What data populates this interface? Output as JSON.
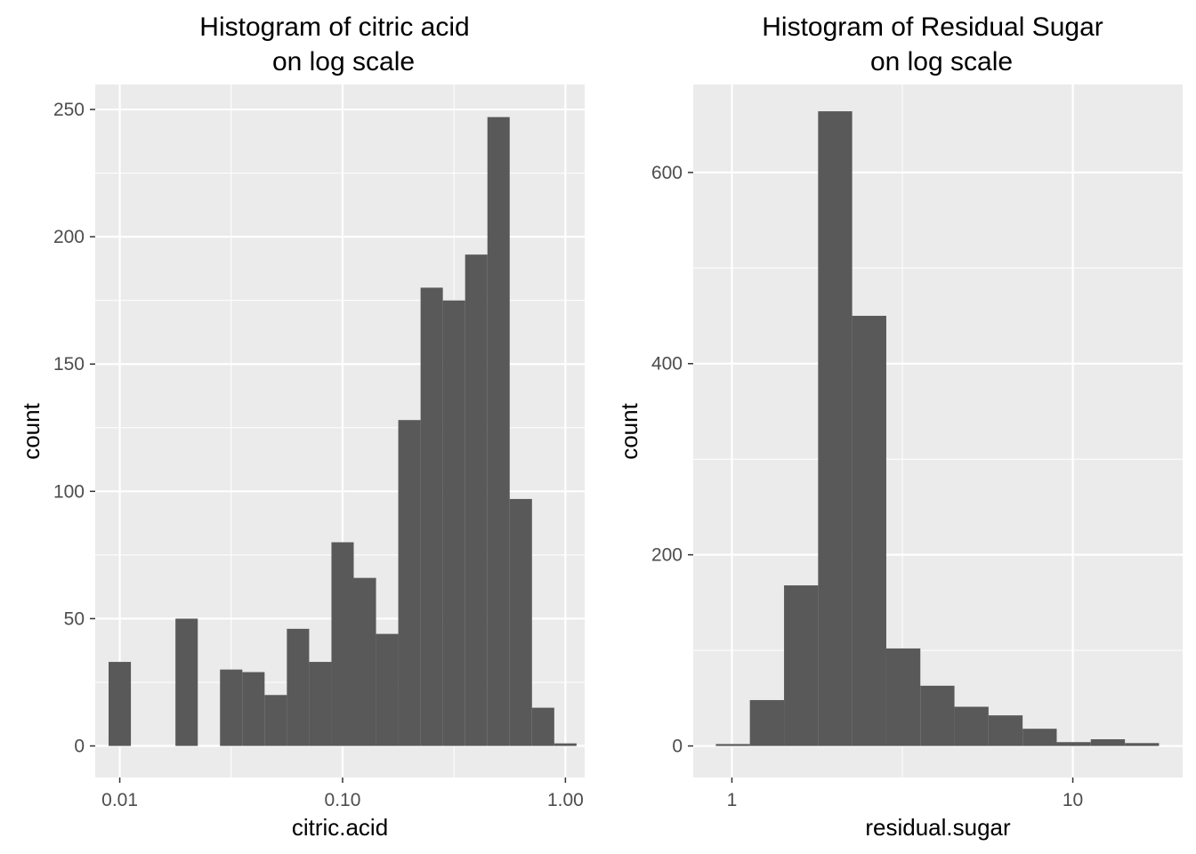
{
  "colors": {
    "panel_bg": "#ebebeb",
    "grid_major": "#ffffff",
    "bar_fill": "#595959",
    "tick_text": "#4d4d4d",
    "title_text": "#000000"
  },
  "chart_data": [
    {
      "type": "bar",
      "subtype": "histogram",
      "title": "Histogram of citric acid",
      "subtitle": "on log scale",
      "xlabel": "citric.acid",
      "ylabel": "count",
      "x_scale": "log10",
      "xlim": [
        0.00776,
        1.22
      ],
      "ylim": [
        -12.4,
        259.8
      ],
      "x_ticks": [
        0.01,
        0.1,
        1.0
      ],
      "x_tick_labels": [
        "0.01",
        "0.10",
        "1.00"
      ],
      "y_ticks": [
        0,
        50,
        100,
        150,
        200,
        250
      ],
      "y_tick_labels": [
        "0",
        "50",
        "100",
        "150",
        "200",
        "250"
      ],
      "grid": true,
      "bins": [
        {
          "x0": 0.00891,
          "x1": 0.01122,
          "count": 33
        },
        {
          "x0": 0.01122,
          "x1": 0.01413,
          "count": 0
        },
        {
          "x0": 0.01413,
          "x1": 0.01778,
          "count": 0
        },
        {
          "x0": 0.01778,
          "x1": 0.02239,
          "count": 50
        },
        {
          "x0": 0.02239,
          "x1": 0.02818,
          "count": 0
        },
        {
          "x0": 0.02818,
          "x1": 0.03548,
          "count": 30
        },
        {
          "x0": 0.03548,
          "x1": 0.04467,
          "count": 29
        },
        {
          "x0": 0.04467,
          "x1": 0.05623,
          "count": 20
        },
        {
          "x0": 0.05623,
          "x1": 0.07079,
          "count": 46
        },
        {
          "x0": 0.07079,
          "x1": 0.08913,
          "count": 33
        },
        {
          "x0": 0.08913,
          "x1": 0.1122,
          "count": 80
        },
        {
          "x0": 0.1122,
          "x1": 0.1413,
          "count": 66
        },
        {
          "x0": 0.1413,
          "x1": 0.1778,
          "count": 44
        },
        {
          "x0": 0.1778,
          "x1": 0.2239,
          "count": 128
        },
        {
          "x0": 0.2239,
          "x1": 0.2818,
          "count": 180
        },
        {
          "x0": 0.2818,
          "x1": 0.3548,
          "count": 175
        },
        {
          "x0": 0.3548,
          "x1": 0.4467,
          "count": 193
        },
        {
          "x0": 0.4467,
          "x1": 0.5623,
          "count": 247
        },
        {
          "x0": 0.5623,
          "x1": 0.7079,
          "count": 97
        },
        {
          "x0": 0.7079,
          "x1": 0.8913,
          "count": 15
        },
        {
          "x0": 0.8913,
          "x1": 1.122,
          "count": 1
        }
      ]
    },
    {
      "type": "bar",
      "subtype": "histogram",
      "title": "Histogram of Residual Sugar",
      "subtitle": "on log scale",
      "xlabel": "residual.sugar",
      "ylabel": "count",
      "x_scale": "log10",
      "xlim": [
        0.77,
        21.0
      ],
      "ylim": [
        -33,
        692
      ],
      "x_ticks": [
        1,
        10
      ],
      "x_tick_labels": [
        "1",
        "10"
      ],
      "y_ticks": [
        0,
        200,
        400,
        600
      ],
      "y_tick_labels": [
        "0",
        "200",
        "400",
        "600"
      ],
      "grid": true,
      "bins": [
        {
          "x0": 0.897,
          "x1": 1.129,
          "count": 2
        },
        {
          "x0": 1.129,
          "x1": 1.422,
          "count": 48
        },
        {
          "x0": 1.422,
          "x1": 1.79,
          "count": 168
        },
        {
          "x0": 1.79,
          "x1": 2.253,
          "count": 664
        },
        {
          "x0": 2.253,
          "x1": 2.837,
          "count": 450
        },
        {
          "x0": 2.837,
          "x1": 3.571,
          "count": 102
        },
        {
          "x0": 3.571,
          "x1": 4.496,
          "count": 63
        },
        {
          "x0": 4.496,
          "x1": 5.66,
          "count": 41
        },
        {
          "x0": 5.66,
          "x1": 7.125,
          "count": 32
        },
        {
          "x0": 7.125,
          "x1": 8.97,
          "count": 18
        },
        {
          "x0": 8.97,
          "x1": 11.29,
          "count": 4
        },
        {
          "x0": 11.29,
          "x1": 14.22,
          "count": 7
        },
        {
          "x0": 14.22,
          "x1": 17.9,
          "count": 3
        }
      ]
    }
  ]
}
